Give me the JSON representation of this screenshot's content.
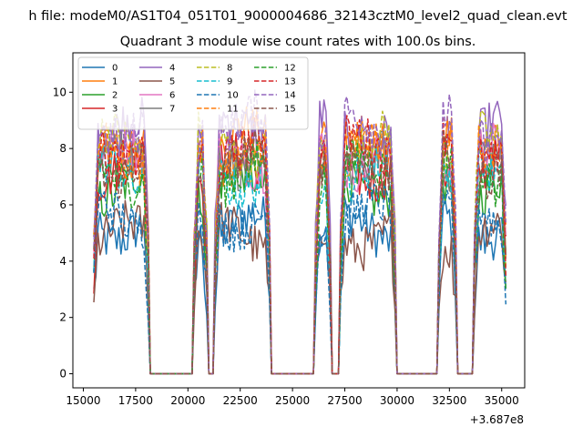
{
  "suptitle": "h file: modeM0/AS1T04_051T01_9000004686_32143cztM0_level2_quad_clean.evt",
  "chart_data": {
    "type": "line",
    "title": "Quadrant 3 module wise count rates with 100.0s bins.",
    "xlabel": "",
    "ylabel": "",
    "x_offset_label": "+3.687e8",
    "xlim": [
      14500,
      36100
    ],
    "ylim": [
      -0.5,
      11.4
    ],
    "xticks": [
      15000,
      17500,
      20000,
      22500,
      25000,
      27500,
      30000,
      32500,
      35000
    ],
    "xtick_labels": [
      "15000",
      "17500",
      "20000",
      "22500",
      "25000",
      "27500",
      "30000",
      "32500",
      "35000"
    ],
    "yticks": [
      0,
      2,
      4,
      6,
      8,
      10
    ],
    "ytick_labels": [
      "0",
      "2",
      "4",
      "6",
      "8",
      "10"
    ],
    "legend_location": "upper left",
    "legend_columns": 4,
    "segments": [
      {
        "x_start": 15500,
        "x_end": 18100
      },
      {
        "x_start": 20300,
        "x_end": 20900
      },
      {
        "x_start": 21300,
        "x_end": 23900
      },
      {
        "x_start": 26100,
        "x_end": 26800
      },
      {
        "x_start": 27300,
        "x_end": 29900
      },
      {
        "x_start": 32000,
        "x_end": 32800
      },
      {
        "x_start": 33700,
        "x_end": 35200
      }
    ],
    "gap_value": 0,
    "series": [
      {
        "name": "0",
        "color": "#1f77b4",
        "dash": "solid",
        "level": 5.2
      },
      {
        "name": "1",
        "color": "#ff7f0e",
        "dash": "solid",
        "level": 8.3
      },
      {
        "name": "2",
        "color": "#2ca02c",
        "dash": "solid",
        "level": 6.7
      },
      {
        "name": "3",
        "color": "#d62728",
        "dash": "solid",
        "level": 7.3
      },
      {
        "name": "4",
        "color": "#9467bd",
        "dash": "solid",
        "level": 8.6
      },
      {
        "name": "5",
        "color": "#8c564b",
        "dash": "solid",
        "level": 4.9
      },
      {
        "name": "6",
        "color": "#e377c2",
        "dash": "solid",
        "level": 7.7
      },
      {
        "name": "7",
        "color": "#7f7f7f",
        "dash": "solid",
        "level": 7.5
      },
      {
        "name": "8",
        "color": "#bcbd22",
        "dash": "dashed",
        "level": 8.1
      },
      {
        "name": "9",
        "color": "#17becf",
        "dash": "dashed",
        "level": 7.0
      },
      {
        "name": "10",
        "color": "#1f77b4",
        "dash": "dashed",
        "level": 5.6
      },
      {
        "name": "11",
        "color": "#ff7f0e",
        "dash": "dashed",
        "level": 7.9
      },
      {
        "name": "12",
        "color": "#2ca02c",
        "dash": "dashed",
        "level": 7.2
      },
      {
        "name": "13",
        "color": "#d62728",
        "dash": "dashed",
        "level": 8.0
      },
      {
        "name": "14",
        "color": "#9467bd",
        "dash": "dashed",
        "level": 8.8
      },
      {
        "name": "15",
        "color": "#8c564b",
        "dash": "dashed",
        "level": 7.4
      }
    ]
  }
}
